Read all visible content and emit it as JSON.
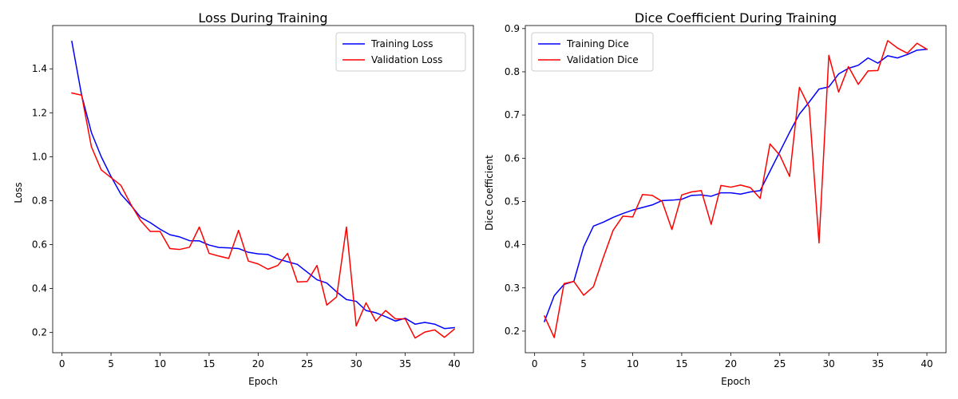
{
  "chart_data": [
    {
      "type": "line",
      "title": "Loss During Training",
      "xlabel": "Epoch",
      "ylabel": "Loss",
      "xlim": [
        -0.95,
        41.95
      ],
      "ylim": [
        0.108,
        1.597
      ],
      "xticks": [
        0,
        5,
        10,
        15,
        20,
        25,
        30,
        35,
        40
      ],
      "yticks": [
        0.2,
        0.4,
        0.6,
        0.8,
        1.0,
        1.2,
        1.4
      ],
      "ytick_decimals": 1,
      "legend": "top-right",
      "grid": false,
      "x": [
        1,
        2,
        3,
        4,
        5,
        6,
        7,
        8,
        9,
        10,
        11,
        12,
        13,
        14,
        15,
        16,
        17,
        18,
        19,
        20,
        21,
        22,
        23,
        24,
        25,
        26,
        27,
        28,
        29,
        30,
        31,
        32,
        33,
        34,
        35,
        36,
        37,
        38,
        39,
        40
      ],
      "series": [
        {
          "name": "Training Loss",
          "color": "#0000ff",
          "values": [
            1.525,
            1.28,
            1.11,
            1.0,
            0.91,
            0.83,
            0.78,
            0.725,
            0.7,
            0.67,
            0.645,
            0.635,
            0.618,
            0.617,
            0.598,
            0.587,
            0.585,
            0.582,
            0.565,
            0.558,
            0.555,
            0.535,
            0.522,
            0.51,
            0.475,
            0.44,
            0.425,
            0.385,
            0.35,
            0.342,
            0.3,
            0.29,
            0.272,
            0.252,
            0.265,
            0.238,
            0.246,
            0.238,
            0.218,
            0.222
          ]
        },
        {
          "name": "Validation Loss",
          "color": "#ff0000",
          "values": [
            1.29,
            1.28,
            1.045,
            0.94,
            0.905,
            0.87,
            0.785,
            0.71,
            0.66,
            0.66,
            0.582,
            0.578,
            0.588,
            0.68,
            0.56,
            0.548,
            0.537,
            0.665,
            0.525,
            0.512,
            0.488,
            0.505,
            0.56,
            0.43,
            0.432,
            0.505,
            0.325,
            0.362,
            0.68,
            0.23,
            0.335,
            0.252,
            0.3,
            0.262,
            0.262,
            0.175,
            0.202,
            0.212,
            0.178,
            0.215
          ]
        }
      ]
    },
    {
      "type": "line",
      "title": "Dice Coefficient During Training",
      "xlabel": "Epoch",
      "ylabel": "Dice Coefficient",
      "xlim": [
        -0.95,
        41.95
      ],
      "ylim": [
        0.15,
        0.907
      ],
      "xticks": [
        0,
        5,
        10,
        15,
        20,
        25,
        30,
        35,
        40
      ],
      "yticks": [
        0.2,
        0.3,
        0.4,
        0.5,
        0.6,
        0.7,
        0.8,
        0.9
      ],
      "ytick_decimals": 1,
      "legend": "top-left",
      "grid": false,
      "x": [
        1,
        2,
        3,
        4,
        5,
        6,
        7,
        8,
        9,
        10,
        11,
        12,
        13,
        14,
        15,
        16,
        17,
        18,
        19,
        20,
        21,
        22,
        23,
        24,
        25,
        26,
        27,
        28,
        29,
        30,
        31,
        32,
        33,
        34,
        35,
        36,
        37,
        38,
        39,
        40
      ],
      "series": [
        {
          "name": "Training Dice",
          "color": "#0000ff",
          "values": [
            0.222,
            0.282,
            0.308,
            0.315,
            0.395,
            0.443,
            0.452,
            0.463,
            0.472,
            0.48,
            0.486,
            0.492,
            0.502,
            0.503,
            0.505,
            0.514,
            0.515,
            0.512,
            0.52,
            0.52,
            0.517,
            0.522,
            0.525,
            0.57,
            0.615,
            0.66,
            0.702,
            0.73,
            0.76,
            0.765,
            0.795,
            0.808,
            0.815,
            0.832,
            0.82,
            0.837,
            0.832,
            0.84,
            0.85,
            0.852
          ]
        },
        {
          "name": "Validation Dice",
          "color": "#ff0000",
          "values": [
            0.235,
            0.185,
            0.31,
            0.315,
            0.283,
            0.303,
            0.37,
            0.433,
            0.466,
            0.464,
            0.516,
            0.514,
            0.5,
            0.435,
            0.515,
            0.522,
            0.525,
            0.447,
            0.537,
            0.533,
            0.538,
            0.532,
            0.507,
            0.633,
            0.607,
            0.558,
            0.764,
            0.718,
            0.404,
            0.838,
            0.753,
            0.812,
            0.771,
            0.802,
            0.803,
            0.872,
            0.855,
            0.843,
            0.866,
            0.852
          ]
        }
      ]
    }
  ]
}
